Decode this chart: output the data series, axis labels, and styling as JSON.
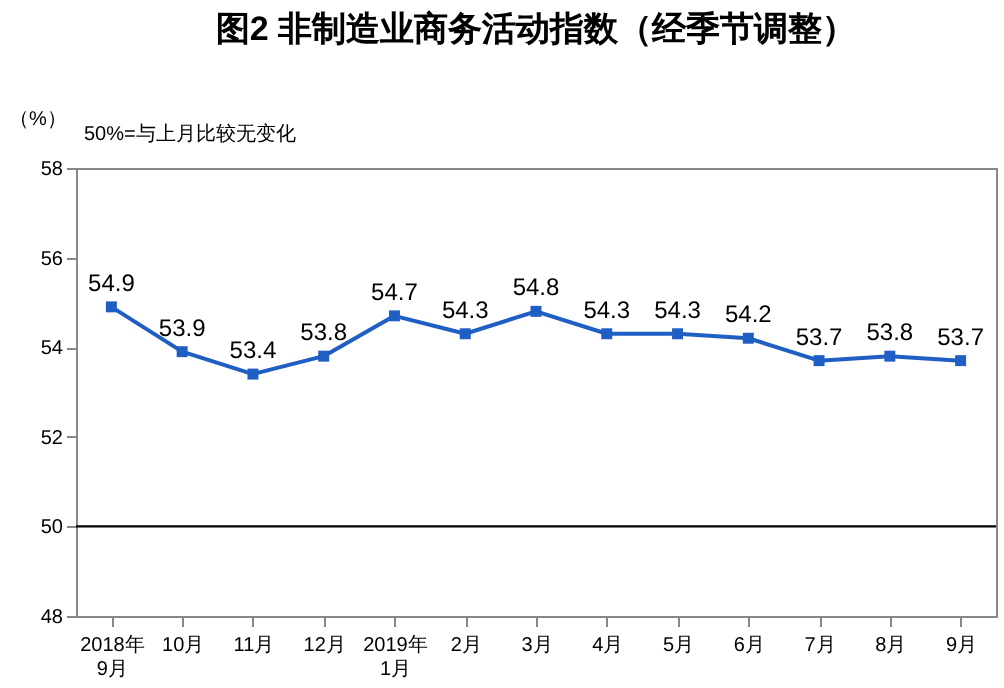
{
  "chart_data": {
    "type": "line",
    "title": "图2  非制造业商务活动指数（经季节调整）",
    "ylabel": "（%）",
    "annotations": [
      "50%=与上月比较无变化"
    ],
    "categories": [
      "2018年\n9月",
      "10月",
      "11月",
      "12月",
      "2019年\n1月",
      "2月",
      "3月",
      "4月",
      "5月",
      "6月",
      "7月",
      "8月",
      "9月"
    ],
    "series": [
      {
        "color": "#1f5fc4",
        "values": [
          54.9,
          53.9,
          53.4,
          53.8,
          54.7,
          54.3,
          54.8,
          54.3,
          54.3,
          54.2,
          53.7,
          53.8,
          53.7
        ]
      }
    ],
    "ylim": [
      48,
      58
    ],
    "yticks": [
      48,
      50,
      52,
      54,
      56,
      58
    ],
    "grid": false,
    "marker": "square",
    "line_style": "solid",
    "data_labels": true,
    "ref_lines": [
      {
        "axis": "y",
        "value": 50,
        "color": "#000000"
      }
    ]
  }
}
